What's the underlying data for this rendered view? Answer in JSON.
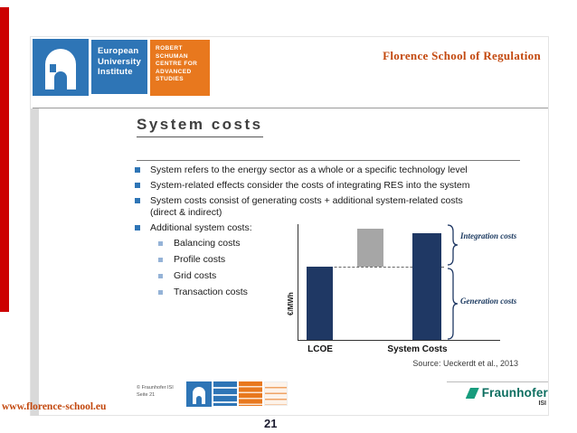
{
  "page": {
    "site_url": "www.florence-school.eu",
    "page_number": "21"
  },
  "header": {
    "school_title": "Florence School of Regulation",
    "eui_logo_lines": [
      "European",
      "University",
      "Institute"
    ],
    "rsc_logo_lines": [
      "ROBERT",
      "SCHUMAN",
      "CENTRE FOR",
      "ADVANCED",
      "STUDIES"
    ]
  },
  "slide": {
    "title": "System costs",
    "bullets": [
      "System refers to the energy sector as a whole or a specific technology level",
      "System-related effects consider the costs of integrating RES into the system",
      "System costs consist of generating costs + additional system-related costs\n(direct & indirect)",
      "Additional system costs:"
    ],
    "sub_bullets": [
      "Balancing costs",
      "Profile costs",
      "Grid costs",
      "Transaction costs"
    ],
    "source": "Source: Ueckerdt et al., 2013",
    "footer": {
      "copyright": "© Fraunhofer ISI",
      "page_label": "Seite 21",
      "fraunhofer_name": "Fraunhofer",
      "fraunhofer_institute": "ISI"
    }
  },
  "chart_data": {
    "type": "bar",
    "title": "",
    "xlabel": "",
    "ylabel": "€/MWh",
    "categories": [
      "LCOE",
      "System Costs"
    ],
    "bars": [
      {
        "category": "LCOE",
        "segments": [
          {
            "name": "Generation costs (LCOE)",
            "value": 55,
            "color": "#1f3864"
          }
        ]
      },
      {
        "category": "System Costs",
        "segments": [
          {
            "name": "Integration costs",
            "value": 29,
            "color": "#a6a6a6",
            "note": "floating segment drawn above the dashed LCOE level"
          },
          {
            "name": "Total system costs",
            "value": 80,
            "color": "#1f3864"
          }
        ]
      }
    ],
    "annotations": [
      "Integration costs",
      "Generation costs"
    ],
    "reference_line": "dashed horizontal line at top of LCOE bar extending to System Costs bar",
    "value_unit": "relative (y-axis unlabeled, in €/MWh)",
    "grid": false,
    "legend": false
  },
  "colors": {
    "accent_red": "#cc0000",
    "eui_blue": "#2e75b6",
    "rsc_orange": "#e8781e",
    "school_title_red": "#c3490f",
    "bar_navy": "#1f3864",
    "bar_gray": "#a6a6a6",
    "fraunhofer_green": "#179c7d"
  },
  "icons": {
    "eui_emblem": "arched-door-building",
    "bullet": "small-square",
    "fraunhofer_flag": "slanted-parallelogram",
    "brace": "curly-brace"
  }
}
